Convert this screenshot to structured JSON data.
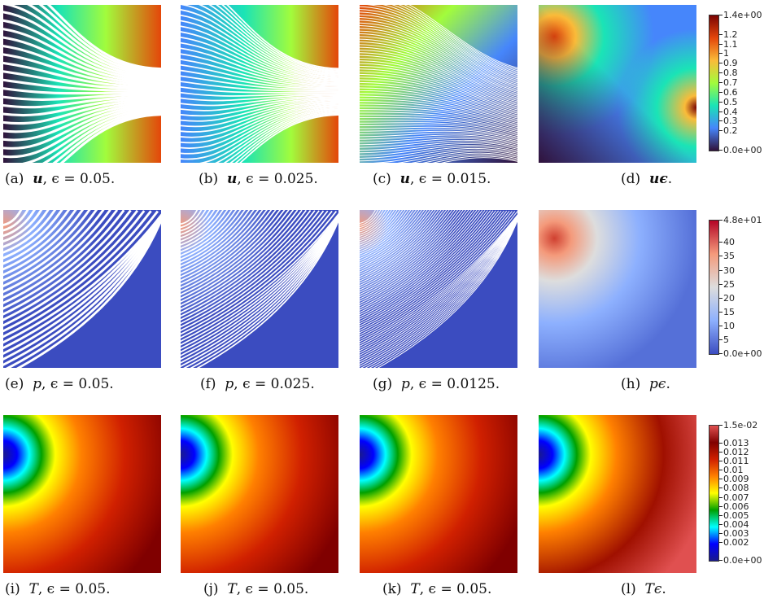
{
  "captions": [
    {
      "tag": "(a)",
      "sym": "u",
      "bold": true,
      "rest": ", ϵ = 0.05."
    },
    {
      "tag": "(b)",
      "sym": "u",
      "bold": true,
      "rest": ", ϵ = 0.025."
    },
    {
      "tag": "(c)",
      "sym": "u",
      "bold": true,
      "rest": ", ϵ = 0.015."
    },
    {
      "tag": "(d)",
      "sym": "uϵ",
      "bold": true,
      "rest": "."
    },
    {
      "tag": "(e)",
      "sym": "p",
      "bold": false,
      "rest": ", ϵ = 0.05."
    },
    {
      "tag": "(f)",
      "sym": "p",
      "bold": false,
      "rest": ", ϵ = 0.025."
    },
    {
      "tag": "(g)",
      "sym": "p",
      "bold": false,
      "rest": ", ϵ = 0.0125."
    },
    {
      "tag": "(h)",
      "sym": "pϵ",
      "bold": false,
      "rest": "."
    },
    {
      "tag": "(i)",
      "sym": "T",
      "bold": false,
      "rest": ", ϵ = 0.05."
    },
    {
      "tag": "(j)",
      "sym": "T",
      "bold": false,
      "rest": ", ϵ = 0.05."
    },
    {
      "tag": "(k)",
      "sym": "T",
      "bold": false,
      "rest": ", ϵ = 0.05."
    },
    {
      "tag": "(l)",
      "sym": "Tϵ",
      "bold": false,
      "rest": "."
    }
  ],
  "colorbars": {
    "u": {
      "ticks": [
        "1.4e+00",
        "1.2",
        "1.1",
        "1",
        "0.9",
        "0.8",
        "0.7",
        "0.6",
        "0.5",
        "0.4",
        "0.3",
        "0.2",
        "0.0e+00"
      ],
      "values": [
        1.4,
        1.2,
        1.1,
        1.0,
        0.9,
        0.8,
        0.7,
        0.6,
        0.5,
        0.4,
        0.3,
        0.2,
        0.0
      ],
      "min": 0.0,
      "max": 1.4,
      "colors": [
        "#30123b",
        "#4686fb",
        "#1ae4b6",
        "#a2fc3c",
        "#fabb39",
        "#e4460a",
        "#7a0403"
      ]
    },
    "p": {
      "ticks": [
        "4.8e+01",
        "40",
        "35",
        "30",
        "25",
        "20",
        "15",
        "10",
        "5",
        "0.0e+00"
      ],
      "values": [
        48,
        40,
        35,
        30,
        25,
        20,
        15,
        10,
        5,
        0
      ],
      "min": 0,
      "max": 48,
      "colors": [
        "#3b4cc0",
        "#8db0fe",
        "#dddddd",
        "#f49a7b",
        "#b40426"
      ]
    },
    "T": {
      "ticks": [
        "1.5e-02",
        "0.013",
        "0.012",
        "0.011",
        "0.01",
        "0.009",
        "0.008",
        "0.007",
        "0.006",
        "0.005",
        "0.004",
        "0.003",
        "0.002",
        "0.0e+00"
      ],
      "values": [
        0.015,
        0.013,
        0.012,
        0.011,
        0.01,
        0.009,
        0.008,
        0.007,
        0.006,
        0.005,
        0.004,
        0.003,
        0.002,
        0.0
      ],
      "min": 0.0,
      "max": 0.015,
      "colors": [
        "#1a1a8c",
        "#0000ff",
        "#00ffff",
        "#00a000",
        "#ffff00",
        "#ff8000",
        "#d02000",
        "#800000",
        "#e05050"
      ]
    }
  }
}
